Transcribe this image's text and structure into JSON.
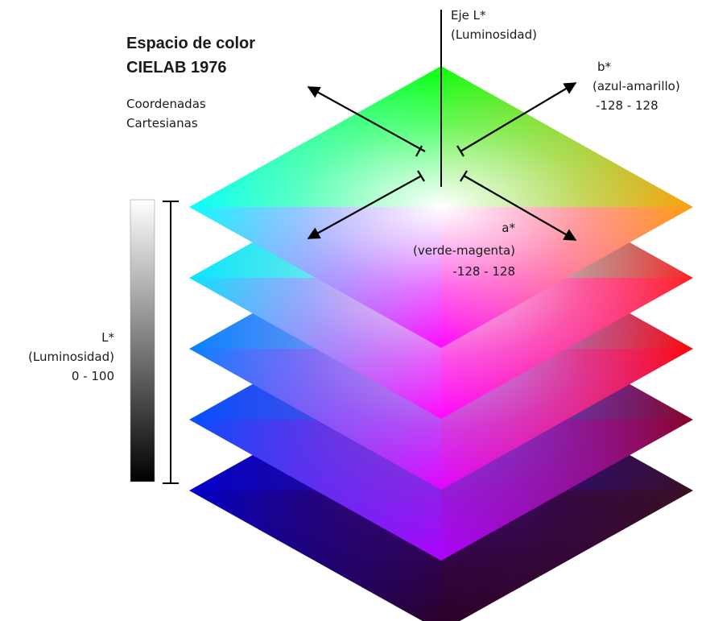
{
  "title": {
    "line1": "Espacio de color",
    "line2": "CIELAB 1976"
  },
  "subtitle": {
    "line1": "Coordenadas",
    "line2": "Cartesianas"
  },
  "axis_L": {
    "line1": "Eje L*",
    "line2": "(Luminosidad)"
  },
  "axis_b": {
    "line1": "b*",
    "line2": "(azul-amarillo)",
    "line3": "-128 - 128"
  },
  "axis_a": {
    "line1": "a*",
    "line2": "(verde-magenta)",
    "line3": "-128 - 128"
  },
  "lightness_scale": {
    "line1": "L*",
    "line2": "(Luminosidad)",
    "line3": "0 - 100"
  },
  "layers": [
    {
      "top": "#00ff00",
      "left": "#00ffff",
      "right": "#ff9a00",
      "bottom": "#ff00ff",
      "center": "#ffffff"
    },
    {
      "top": "#00ffcc",
      "left": "#00e5ff",
      "right": "#ff1a1a",
      "bottom": "#ff00ff",
      "center": "#f4d9f0"
    },
    {
      "top": "#4f8fff",
      "left": "#0080ff",
      "right": "#ff0000",
      "bottom": "#e000ff",
      "center": "#b79ee6"
    },
    {
      "top": "#2b5bff",
      "left": "#0050ff",
      "right": "#8a0020",
      "bottom": "#b000ff",
      "center": "#7a40c8"
    },
    {
      "top": "#1410b0",
      "left": "#0000d0",
      "right": "#3a1020",
      "bottom": "#2a0020",
      "center": "#3a0870"
    }
  ],
  "colors": {
    "text": "#1a1a1a",
    "arrow": "#000000",
    "gradient_top": "#ffffff",
    "gradient_bottom": "#000000"
  }
}
